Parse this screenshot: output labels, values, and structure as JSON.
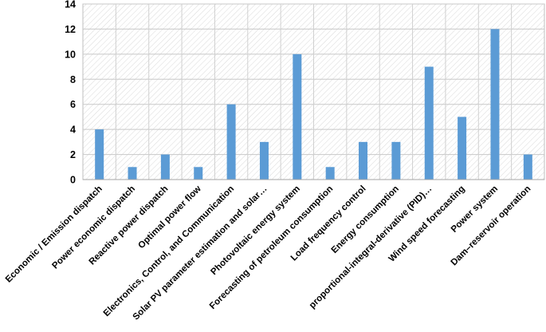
{
  "chart_data": {
    "type": "bar",
    "title": "",
    "xlabel": "",
    "ylabel": "",
    "categories": [
      "Economic / Emission dispatch",
      "Power economic dispatch",
      "Reactive power dispatch",
      "Optimal power flow",
      "Electronics, Control, and Communication",
      "Solar PV parameter estimation and solar…",
      "Photovoltaic energy system",
      "Forecasting of petroleum consumption",
      "Load frequency control",
      "Energy consumption",
      "proportional-integral-derivative (PID)…",
      "Wind speed forecasting",
      "Power system",
      "Dam–reservoir operation"
    ],
    "values": [
      4,
      1,
      2,
      1,
      6,
      3,
      10,
      1,
      3,
      3,
      9,
      5,
      12,
      2
    ],
    "ylim": [
      0,
      14
    ],
    "yticks": [
      0,
      2,
      4,
      6,
      8,
      10,
      12,
      14
    ],
    "grid": true,
    "legend": "none",
    "colors": {
      "bar": "#5b9bd5",
      "plot_background_hatch": "#d9d9d9",
      "plot_border": "#bfbfbf"
    }
  }
}
